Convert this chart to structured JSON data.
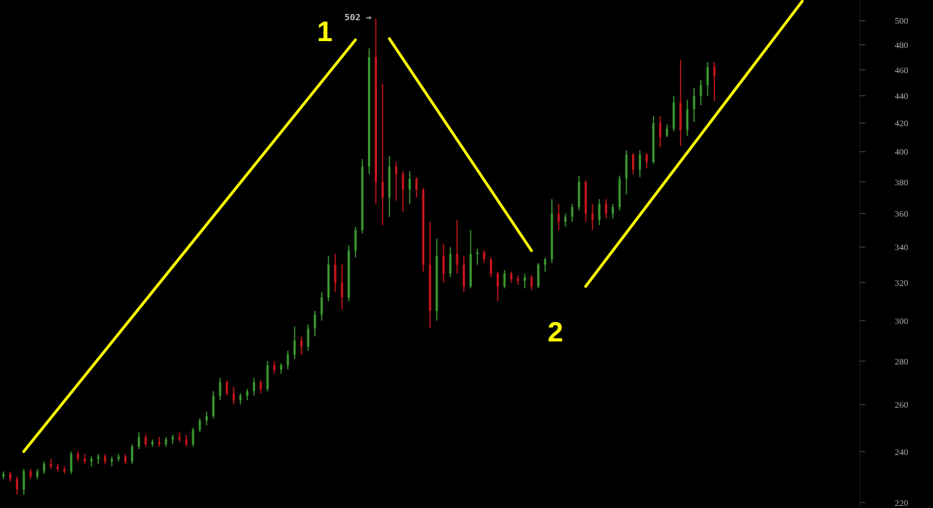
{
  "chart_data": {
    "type": "candlestick",
    "categories": [
      null,
      null,
      null,
      null,
      null,
      null,
      null,
      null,
      null,
      null,
      null,
      null,
      null,
      null,
      null,
      null,
      null,
      null,
      null,
      null,
      null,
      null,
      null,
      null,
      null,
      null,
      null,
      null,
      null,
      null,
      null,
      null,
      null,
      null,
      null,
      null,
      null,
      null,
      null,
      null,
      null,
      null,
      null,
      null,
      null,
      null,
      null,
      null,
      null,
      null,
      null,
      null,
      null,
      null,
      null,
      null,
      null,
      null,
      null,
      null,
      null,
      null,
      null,
      null,
      null,
      null,
      null,
      null,
      null,
      null,
      null,
      null,
      null,
      null,
      null,
      null,
      null,
      null,
      null,
      null,
      null,
      null,
      null,
      null,
      null,
      null,
      null,
      null,
      null,
      null,
      null,
      null,
      null,
      null,
      null,
      null,
      null,
      null,
      null,
      null,
      null,
      null,
      null,
      null,
      null,
      null,
      null,
      null,
      null,
      null,
      null,
      null,
      null,
      null,
      null,
      null,
      null,
      null,
      null,
      null,
      null,
      null,
      null,
      null,
      null,
      null,
      null
    ],
    "ohlc": [
      [
        230,
        232,
        229,
        231
      ],
      [
        231,
        232,
        228,
        229
      ],
      [
        229,
        230,
        223,
        225
      ],
      [
        225,
        233,
        223,
        232
      ],
      [
        232,
        233,
        229,
        230
      ],
      [
        230,
        233,
        229,
        232
      ],
      [
        232,
        236,
        231,
        235
      ],
      [
        235,
        237,
        233,
        234
      ],
      [
        234,
        235,
        232,
        233
      ],
      [
        233,
        234,
        231,
        232
      ],
      [
        232,
        240,
        231,
        239
      ],
      [
        239,
        240,
        236,
        237
      ],
      [
        237,
        239,
        235,
        236
      ],
      [
        236,
        238,
        234,
        237
      ],
      [
        237,
        239,
        235,
        238
      ],
      [
        238,
        239,
        235,
        236
      ],
      [
        236,
        238,
        234,
        237
      ],
      [
        237,
        239,
        236,
        238
      ],
      [
        238,
        239,
        235,
        236
      ],
      [
        236,
        243,
        235,
        242
      ],
      [
        242,
        248,
        241,
        246
      ],
      [
        246,
        247,
        242,
        243
      ],
      [
        243,
        245,
        242,
        244
      ],
      [
        244,
        246,
        242,
        243
      ],
      [
        243,
        246,
        242,
        245
      ],
      [
        245,
        247,
        243,
        246
      ],
      [
        246,
        248,
        244,
        245
      ],
      [
        245,
        247,
        242,
        243
      ],
      [
        243,
        250,
        242,
        249
      ],
      [
        249,
        254,
        248,
        253
      ],
      [
        253,
        257,
        251,
        255
      ],
      [
        255,
        266,
        254,
        264
      ],
      [
        264,
        272,
        262,
        270
      ],
      [
        270,
        271,
        264,
        265
      ],
      [
        265,
        268,
        260,
        262
      ],
      [
        262,
        265,
        260,
        264
      ],
      [
        264,
        267,
        262,
        266
      ],
      [
        266,
        272,
        264,
        270
      ],
      [
        270,
        271,
        265,
        267
      ],
      [
        267,
        280,
        266,
        278
      ],
      [
        278,
        280,
        274,
        276
      ],
      [
        276,
        279,
        274,
        278
      ],
      [
        278,
        285,
        276,
        283
      ],
      [
        283,
        297,
        281,
        290
      ],
      [
        290,
        292,
        283,
        287
      ],
      [
        287,
        298,
        285,
        296
      ],
      [
        296,
        305,
        292,
        303
      ],
      [
        303,
        315,
        300,
        312
      ],
      [
        312,
        335,
        310,
        330
      ],
      [
        330,
        336,
        315,
        320
      ],
      [
        320,
        330,
        306,
        312
      ],
      [
        312,
        341,
        310,
        338
      ],
      [
        338,
        352,
        334,
        350
      ],
      [
        350,
        395,
        348,
        390
      ],
      [
        390,
        477,
        385,
        470
      ],
      [
        470,
        502,
        366,
        380
      ],
      [
        380,
        449,
        353,
        370
      ],
      [
        370,
        397,
        358,
        390
      ],
      [
        390,
        393,
        368,
        385
      ],
      [
        385,
        387,
        361,
        375
      ],
      [
        375,
        387,
        366,
        382
      ],
      [
        382,
        383,
        370,
        375
      ],
      [
        375,
        376,
        326,
        330
      ],
      [
        330,
        355,
        296,
        305
      ],
      [
        305,
        345,
        300,
        335
      ],
      [
        335,
        342,
        320,
        325
      ],
      [
        325,
        340,
        323,
        336
      ],
      [
        336,
        356,
        325,
        330
      ],
      [
        330,
        335,
        315,
        318
      ],
      [
        318,
        350,
        317,
        336
      ],
      [
        336,
        339,
        330,
        337
      ],
      [
        337,
        338,
        331,
        333
      ],
      [
        333,
        334,
        323,
        325
      ],
      [
        325,
        326,
        310,
        318
      ],
      [
        318,
        327,
        317,
        325
      ],
      [
        325,
        326,
        320,
        322
      ],
      [
        322,
        324,
        319,
        321
      ],
      [
        321,
        325,
        317,
        323
      ],
      [
        323,
        324,
        316,
        318
      ],
      [
        318,
        331,
        317,
        330
      ],
      [
        330,
        334,
        326,
        333
      ],
      [
        333,
        369,
        331,
        360
      ],
      [
        360,
        366,
        350,
        355
      ],
      [
        355,
        360,
        352,
        358
      ],
      [
        358,
        366,
        355,
        364
      ],
      [
        364,
        384,
        362,
        380
      ],
      [
        380,
        381,
        355,
        360
      ],
      [
        360,
        366,
        350,
        356
      ],
      [
        356,
        369,
        353,
        366
      ],
      [
        366,
        369,
        357,
        360
      ],
      [
        360,
        366,
        357,
        364
      ],
      [
        364,
        384,
        362,
        382
      ],
      [
        382,
        401,
        372,
        398
      ],
      [
        398,
        399,
        385,
        388
      ],
      [
        388,
        401,
        383,
        398
      ],
      [
        398,
        399,
        389,
        393
      ],
      [
        393,
        425,
        392,
        420
      ],
      [
        420,
        425,
        403,
        410
      ],
      [
        411,
        419,
        410,
        416
      ],
      [
        416,
        440,
        414,
        435
      ],
      [
        435,
        468,
        404,
        415
      ],
      [
        415,
        437,
        411,
        430
      ],
      [
        430,
        446,
        421,
        440
      ],
      [
        440,
        452,
        433,
        448
      ],
      [
        448,
        466,
        440,
        462
      ],
      [
        462,
        466,
        436,
        455
      ],
      null,
      null,
      null,
      null,
      null,
      null,
      null,
      null,
      null,
      null,
      null,
      null,
      null,
      null,
      null,
      null,
      null,
      null,
      null,
      null,
      null
    ],
    "series": [
      {
        "type": "line",
        "color": "#ffff00",
        "values": [
          null,
          null,
          null,
          240,
          null,
          null,
          null,
          null,
          null,
          null,
          null,
          null,
          null,
          null,
          null,
          null,
          null,
          null,
          null,
          null,
          null,
          null,
          null,
          null,
          null,
          null,
          null,
          null,
          null,
          null,
          null,
          null,
          null,
          null,
          null,
          null,
          null,
          null,
          null,
          null,
          null,
          null,
          null,
          null,
          null,
          null,
          null,
          null,
          null,
          null,
          null,
          null,
          484,
          null,
          null,
          null,
          null,
          null,
          null,
          null,
          null,
          null,
          null,
          null,
          null,
          null,
          null,
          null,
          null,
          null,
          null,
          null,
          null,
          null,
          null,
          null,
          null,
          null,
          null,
          null,
          null,
          null,
          null,
          null,
          null,
          null,
          null,
          null,
          null,
          null,
          null,
          null,
          null,
          null,
          null,
          null,
          null,
          null,
          null,
          null,
          null,
          null,
          null,
          null,
          null,
          null,
          null,
          null,
          null,
          null,
          null,
          null,
          null,
          null,
          null,
          null,
          null,
          null,
          null,
          null,
          null,
          null,
          null,
          null,
          null,
          null,
          null
        ]
      },
      {
        "type": "line",
        "color": "#ffff00",
        "values": [
          null,
          null,
          null,
          null,
          null,
          null,
          null,
          null,
          null,
          null,
          null,
          null,
          null,
          null,
          null,
          null,
          null,
          null,
          null,
          null,
          null,
          null,
          null,
          null,
          null,
          null,
          null,
          null,
          null,
          null,
          null,
          null,
          null,
          null,
          null,
          null,
          null,
          null,
          null,
          null,
          null,
          null,
          null,
          null,
          null,
          null,
          null,
          null,
          null,
          null,
          null,
          null,
          null,
          null,
          null,
          null,
          null,
          485,
          null,
          null,
          null,
          null,
          null,
          null,
          null,
          null,
          null,
          null,
          null,
          null,
          null,
          null,
          null,
          null,
          null,
          null,
          null,
          null,
          338,
          null,
          null,
          null,
          null,
          null,
          null,
          null,
          null,
          null,
          null,
          null,
          null,
          null,
          null,
          null,
          null,
          null,
          null,
          null,
          null,
          null,
          null,
          null,
          null,
          null,
          null,
          null,
          null,
          null,
          null,
          null,
          null,
          null,
          null,
          null,
          null,
          null,
          null,
          null,
          null,
          null,
          null,
          null,
          null,
          null,
          null,
          null,
          null
        ]
      },
      {
        "type": "line",
        "color": "#ffff00",
        "values": [
          null,
          null,
          null,
          null,
          null,
          null,
          null,
          null,
          null,
          null,
          null,
          null,
          null,
          null,
          null,
          null,
          null,
          null,
          null,
          null,
          null,
          null,
          null,
          null,
          null,
          null,
          null,
          null,
          null,
          null,
          null,
          null,
          null,
          null,
          null,
          null,
          null,
          null,
          null,
          null,
          null,
          null,
          null,
          null,
          null,
          null,
          null,
          null,
          null,
          null,
          null,
          null,
          null,
          null,
          null,
          null,
          null,
          null,
          null,
          null,
          null,
          null,
          null,
          null,
          null,
          null,
          null,
          null,
          null,
          null,
          null,
          null,
          null,
          null,
          null,
          null,
          null,
          null,
          null,
          null,
          null,
          null,
          null,
          null,
          null,
          null,
          318,
          null,
          null,
          null,
          null,
          null,
          null,
          null,
          null,
          null,
          null,
          null,
          null,
          null,
          null,
          null,
          null,
          null,
          null,
          null,
          null,
          null,
          null,
          null,
          null,
          null,
          null,
          null,
          null,
          null,
          null,
          null,
          517,
          null,
          null,
          null,
          null,
          null,
          null,
          null,
          null
        ]
      }
    ],
    "log": "y",
    "ylim": [
      218,
      518
    ],
    "yticks": [
      220,
      240,
      260,
      280,
      300,
      320,
      340,
      360,
      380,
      400,
      420,
      440,
      460,
      480,
      500
    ],
    "tick_labels": "y",
    "annotations": [
      "1",
      "2",
      "502 →"
    ]
  }
}
